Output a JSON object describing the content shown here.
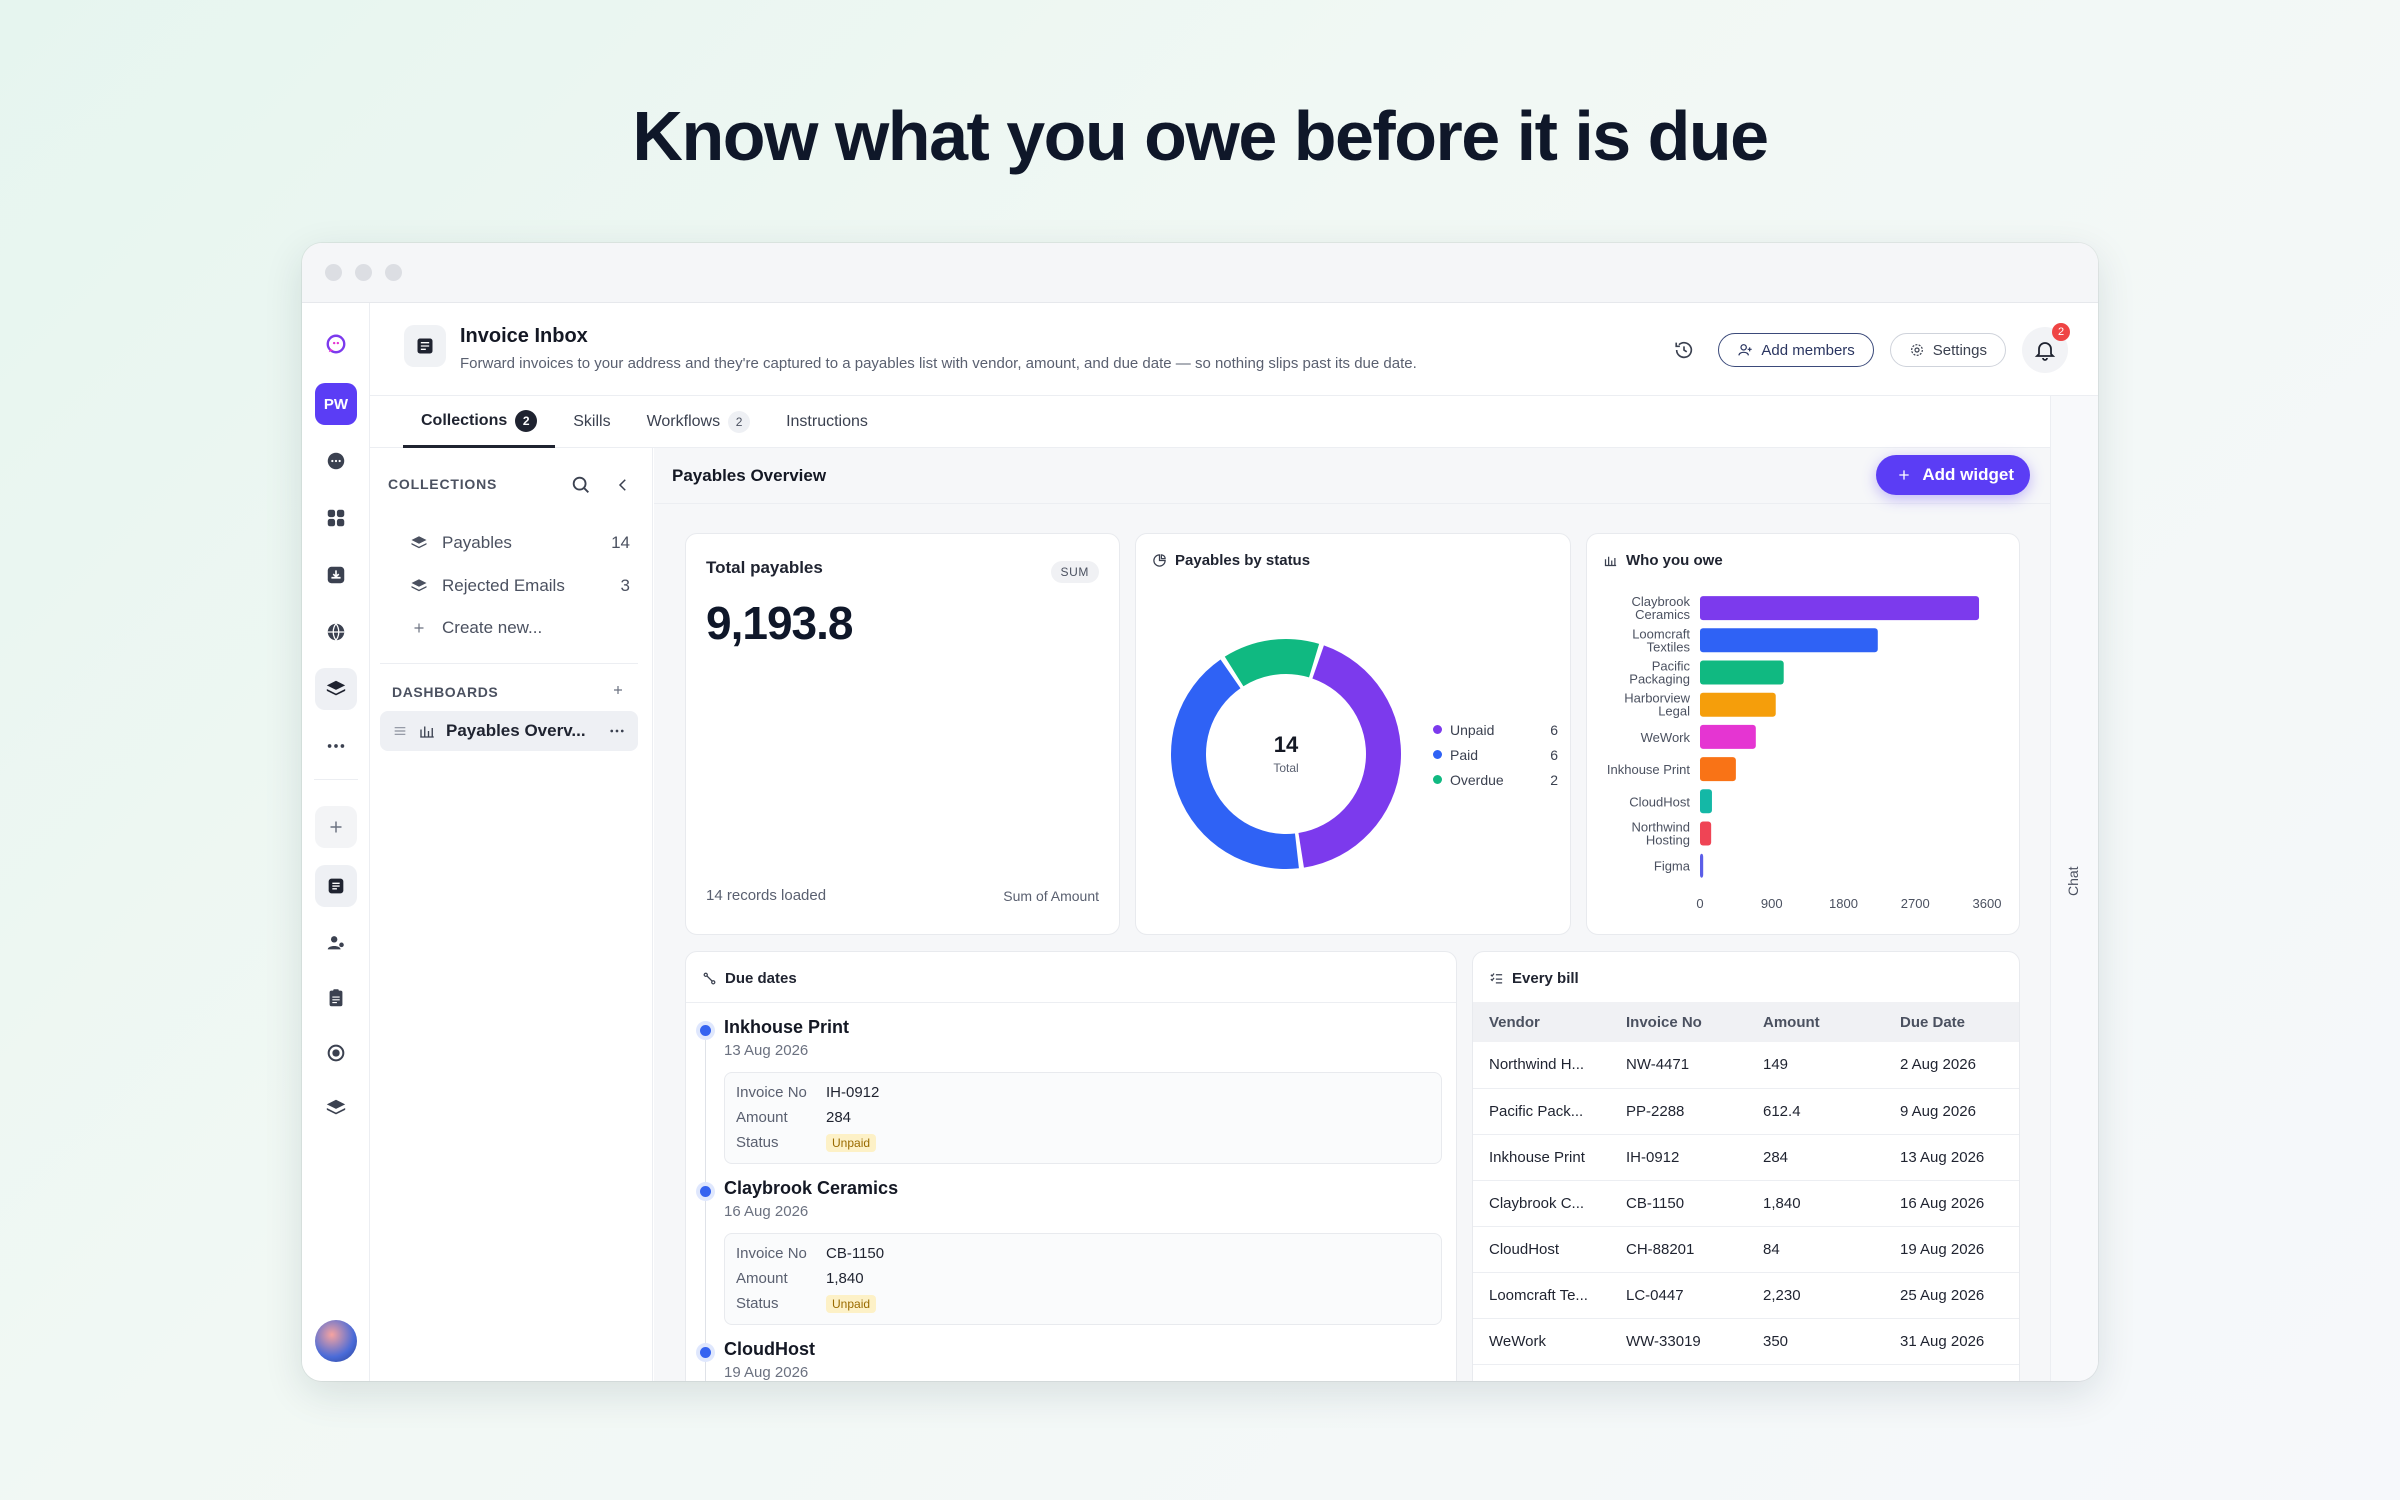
{
  "headline": "Know what you owe before it is due",
  "app": {
    "title": "Invoice Inbox",
    "description": "Forward invoices to your address and they're captured to a payables list with vendor, amount, and due date — so nothing slips past its due date.",
    "add_members": "Add members",
    "settings": "Settings",
    "notifications": "2",
    "workspace_initials": "PW"
  },
  "tabs": [
    {
      "label": "Collections",
      "count": "2"
    },
    {
      "label": "Skills",
      "count": ""
    },
    {
      "label": "Workflows",
      "count": "2"
    },
    {
      "label": "Instructions",
      "count": ""
    }
  ],
  "collections": {
    "heading": "COLLECTIONS",
    "items": [
      {
        "label": "Payables",
        "count": "14"
      },
      {
        "label": "Rejected Emails",
        "count": "3"
      }
    ],
    "create": "Create new..."
  },
  "dashboards": {
    "heading": "DASHBOARDS",
    "selected": "Payables Overv..."
  },
  "main": {
    "title": "Payables Overview",
    "add_widget": "Add widget"
  },
  "total_card": {
    "title": "Total payables",
    "badge": "SUM",
    "value": "9,193.8",
    "footer_left": "14 records loaded",
    "footer_right": "Sum of Amount"
  },
  "status_card": {
    "title": "Payables by status",
    "center_value": "14",
    "center_label": "Total"
  },
  "owe_card": {
    "title": "Who you owe"
  },
  "chart_data": [
    {
      "type": "pie",
      "title": "Payables by status",
      "categories": [
        "Unpaid",
        "Paid",
        "Overdue"
      ],
      "values": [
        6,
        6,
        2
      ],
      "colors": [
        "#7c3aed",
        "#2f62f5",
        "#10b981"
      ],
      "legend": "right"
    },
    {
      "type": "bar",
      "orientation": "horizontal",
      "title": "Who you owe",
      "categories": [
        "Claybrook Ceramics",
        "Loomcraft Textiles",
        "Pacific Packaging",
        "Harborview Legal",
        "WeWork",
        "Inkhouse Print",
        "CloudHost",
        "Northwind Hosting",
        "Figma"
      ],
      "values": [
        3500,
        2230,
        1050,
        950,
        700,
        450,
        150,
        140,
        40
      ],
      "colors": [
        "#7c3aed",
        "#2f62f5",
        "#10b981",
        "#f59e0b",
        "#e535d2",
        "#f97316",
        "#14b8a6",
        "#ef4455",
        "#5b5ee8"
      ],
      "xlim": [
        0,
        3600
      ],
      "xticks": [
        "0",
        "900",
        "1800",
        "2700",
        "3600"
      ]
    }
  ],
  "due_dates": {
    "title": "Due dates",
    "field_labels": {
      "invoice": "Invoice No",
      "amount": "Amount",
      "status": "Status"
    },
    "items": [
      {
        "vendor": "Inkhouse Print",
        "date": "13 Aug 2026",
        "invoice": "IH-0912",
        "amount": "284",
        "status": "Unpaid"
      },
      {
        "vendor": "Claybrook Ceramics",
        "date": "16 Aug 2026",
        "invoice": "CB-1150",
        "amount": "1,840",
        "status": "Unpaid"
      },
      {
        "vendor": "CloudHost",
        "date": "19 Aug 2026",
        "invoice": "",
        "amount": "",
        "status": ""
      }
    ]
  },
  "every_bill": {
    "title": "Every bill",
    "columns": [
      "Vendor",
      "Invoice No",
      "Amount",
      "Due Date"
    ],
    "rows": [
      [
        "Northwind H...",
        "NW-4471",
        "149",
        "2 Aug 2026"
      ],
      [
        "Pacific Pack...",
        "PP-2288",
        "612.4",
        "9 Aug 2026"
      ],
      [
        "Inkhouse Print",
        "IH-0912",
        "284",
        "13 Aug 2026"
      ],
      [
        "Claybrook C...",
        "CB-1150",
        "1,840",
        "16 Aug 2026"
      ],
      [
        "CloudHost",
        "CH-88201",
        "84",
        "19 Aug 2026"
      ],
      [
        "Loomcraft Te...",
        "LC-0447",
        "2,230",
        "25 Aug 2026"
      ],
      [
        "WeWork",
        "WW-33019",
        "350",
        "31 Aug 2026"
      ]
    ]
  },
  "chat_label": "Chat"
}
